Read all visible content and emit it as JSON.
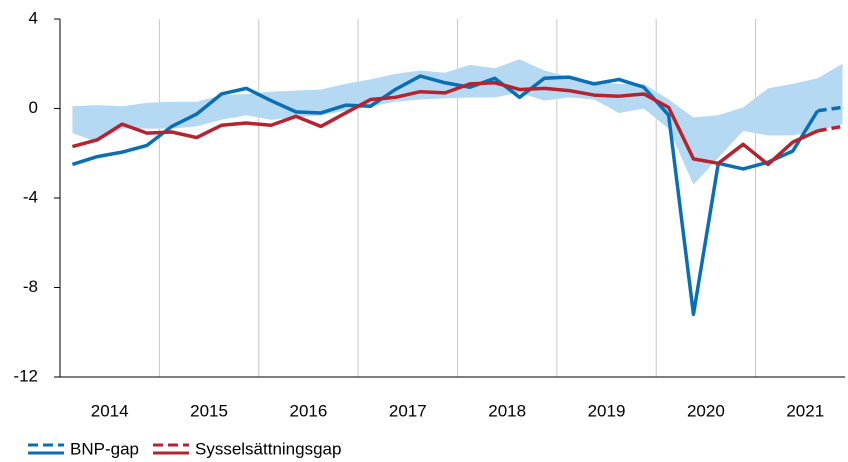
{
  "chart_data": {
    "type": "line",
    "x": [
      2014.125,
      2014.375,
      2014.625,
      2014.875,
      2015.125,
      2015.375,
      2015.625,
      2015.875,
      2016.125,
      2016.375,
      2016.625,
      2016.875,
      2017.125,
      2017.375,
      2017.625,
      2017.875,
      2018.125,
      2018.375,
      2018.625,
      2018.875,
      2019.125,
      2019.375,
      2019.625,
      2019.875,
      2020.125,
      2020.375,
      2020.625,
      2020.875,
      2021.125,
      2021.375,
      2021.625,
      2021.875
    ],
    "series": [
      {
        "name": "BNP-gap",
        "color": "#0a6eb4",
        "dashed_from": 30,
        "values": [
          -2.5,
          -2.15,
          -1.95,
          -1.65,
          -0.8,
          -0.25,
          0.65,
          0.9,
          0.35,
          -0.15,
          -0.2,
          0.15,
          0.1,
          0.85,
          1.45,
          1.15,
          0.95,
          1.35,
          0.5,
          1.35,
          1.4,
          1.1,
          1.3,
          0.95,
          -0.3,
          -9.2,
          -2.45,
          -2.7,
          -2.4,
          -1.9,
          -0.1,
          0.05
        ]
      },
      {
        "name": "Sysselsättningsgap",
        "color": "#b5232f",
        "dashed_from": 30,
        "values": [
          -1.7,
          -1.4,
          -0.7,
          -1.1,
          -1.05,
          -1.3,
          -0.75,
          -0.65,
          -0.75,
          -0.35,
          -0.8,
          -0.2,
          0.4,
          0.5,
          0.75,
          0.7,
          1.1,
          1.15,
          0.85,
          0.9,
          0.8,
          0.6,
          0.55,
          0.65,
          0.05,
          -2.25,
          -2.45,
          -1.6,
          -2.5,
          -1.5,
          -1.0,
          -0.8
        ]
      }
    ],
    "band": {
      "color": "#b5d9f2",
      "upper": [
        0.1,
        0.15,
        0.1,
        0.25,
        0.3,
        0.3,
        0.6,
        0.65,
        0.75,
        0.8,
        0.85,
        1.1,
        1.3,
        1.55,
        1.7,
        1.6,
        1.95,
        1.8,
        2.2,
        1.7,
        1.4,
        1.2,
        1.1,
        1.1,
        0.4,
        -0.4,
        -0.3,
        0.05,
        0.9,
        1.1,
        1.35,
        2.0
      ],
      "lower": [
        -1.1,
        -1.5,
        -0.9,
        -0.9,
        -0.9,
        -0.8,
        -0.5,
        -0.3,
        -0.5,
        -0.4,
        -0.3,
        -0.1,
        0.1,
        0.3,
        0.4,
        0.45,
        0.5,
        0.5,
        0.7,
        0.35,
        0.5,
        0.4,
        -0.2,
        0.0,
        -0.9,
        -3.4,
        -2.2,
        -1.0,
        -1.2,
        -1.2,
        -1.0,
        -0.7
      ]
    },
    "xlim": [
      2014,
      2021.9
    ],
    "xticks": [
      {
        "value": 2014.5,
        "label": "2014"
      },
      {
        "value": 2015.5,
        "label": "2015"
      },
      {
        "value": 2016.5,
        "label": "2016"
      },
      {
        "value": 2017.5,
        "label": "2017"
      },
      {
        "value": 2018.5,
        "label": "2018"
      },
      {
        "value": 2019.5,
        "label": "2019"
      },
      {
        "value": 2020.5,
        "label": "2020"
      },
      {
        "value": 2021.5,
        "label": "2021"
      }
    ],
    "xgrid": [
      2015,
      2016,
      2017,
      2018,
      2019,
      2020,
      2021
    ],
    "ylim": [
      -12,
      4
    ],
    "yticks": [
      4,
      0,
      -4,
      -8,
      -12
    ],
    "legend": "bottom-left"
  }
}
